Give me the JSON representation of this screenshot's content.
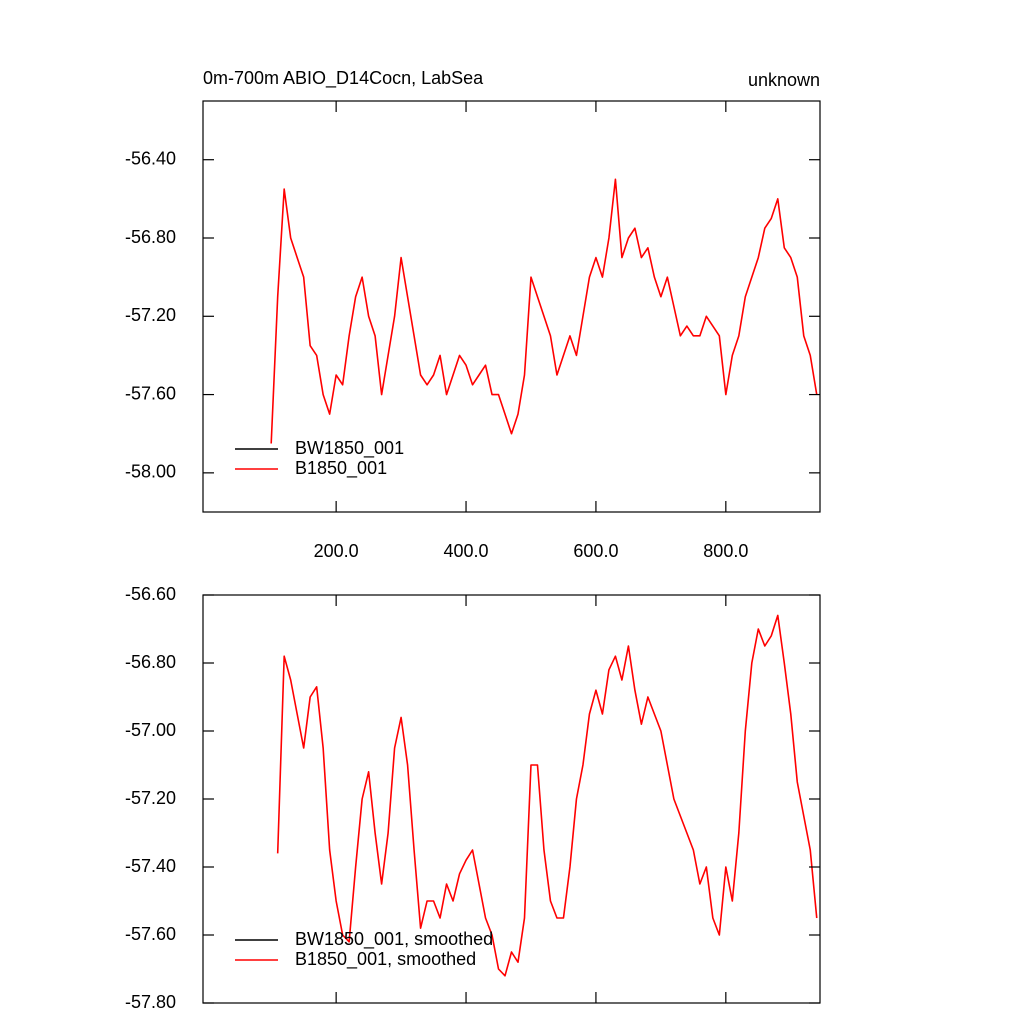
{
  "chart_data": [
    {
      "type": "line",
      "title": "0m-700m ABIO_D14Cocn, LabSea",
      "right_title": "unknown",
      "x": [
        100,
        110,
        120,
        130,
        140,
        150,
        160,
        170,
        180,
        190,
        200,
        210,
        220,
        230,
        240,
        250,
        260,
        270,
        280,
        290,
        300,
        310,
        320,
        330,
        340,
        350,
        360,
        370,
        380,
        390,
        400,
        410,
        420,
        430,
        440,
        450,
        460,
        470,
        480,
        490,
        500,
        510,
        520,
        530,
        540,
        550,
        560,
        570,
        580,
        590,
        600,
        610,
        620,
        630,
        640,
        650,
        660,
        670,
        680,
        690,
        700,
        710,
        720,
        730,
        740,
        750,
        760,
        770,
        780,
        790,
        800,
        810,
        820,
        830,
        840,
        850,
        860,
        870,
        880,
        890,
        900,
        910,
        920,
        930,
        940
      ],
      "series": [
        {
          "name": "BW1850_001",
          "color": "#000000",
          "values": [
            null,
            null,
            null,
            null,
            null,
            null,
            null,
            null,
            null,
            null,
            null,
            null,
            null,
            null,
            null,
            null,
            null,
            null,
            null,
            null,
            null,
            null,
            null,
            null,
            null,
            null,
            null,
            null,
            null,
            null,
            null,
            null,
            null,
            null,
            null,
            null,
            null,
            null,
            null,
            null,
            null,
            null,
            null,
            null,
            null,
            null,
            null,
            null,
            null,
            null,
            null,
            null,
            null,
            null,
            null,
            null,
            null,
            null,
            null,
            null,
            null,
            null,
            null,
            null,
            null,
            null,
            null,
            null,
            null,
            null,
            null,
            null,
            null,
            null,
            null,
            null,
            null,
            null,
            null,
            null,
            null,
            null,
            null,
            null,
            null
          ]
        },
        {
          "name": "B1850_001",
          "color": "#ff0000",
          "values": [
            -57.85,
            -57.1,
            -56.55,
            -56.8,
            -56.9,
            -57.0,
            -57.35,
            -57.4,
            -57.6,
            -57.7,
            -57.5,
            -57.55,
            -57.3,
            -57.1,
            -57.0,
            -57.2,
            -57.3,
            -57.6,
            -57.4,
            -57.2,
            -56.9,
            -57.1,
            -57.3,
            -57.5,
            -57.55,
            -57.5,
            -57.4,
            -57.6,
            -57.5,
            -57.4,
            -57.45,
            -57.55,
            -57.5,
            -57.45,
            -57.6,
            -57.6,
            -57.7,
            -57.8,
            -57.7,
            -57.5,
            -57.0,
            -57.1,
            -57.2,
            -57.3,
            -57.5,
            -57.4,
            -57.3,
            -57.4,
            -57.2,
            -57.0,
            -56.9,
            -57.0,
            -56.8,
            -56.5,
            -56.9,
            -56.8,
            -56.75,
            -56.9,
            -56.85,
            -57.0,
            -57.1,
            -57.0,
            -57.15,
            -57.3,
            -57.25,
            -57.3,
            -57.3,
            -57.2,
            -57.25,
            -57.3,
            -57.6,
            -57.4,
            -57.3,
            -57.1,
            -57.0,
            -56.9,
            -56.75,
            -56.7,
            -56.6,
            -56.85,
            -56.9,
            -57.0,
            -57.3,
            -57.4,
            -57.6
          ]
        }
      ],
      "xlim": [
        -5,
        945
      ],
      "xticks": [
        {
          "value": 200,
          "label": "200.0"
        },
        {
          "value": 400,
          "label": "400.0"
        },
        {
          "value": 600,
          "label": "600.0"
        },
        {
          "value": 800,
          "label": "800.0"
        }
      ],
      "xtick_labels_shown": true,
      "ylim": [
        -58.2,
        -56.1
      ],
      "yticks": [
        {
          "value": -58,
          "label": "-58.00"
        },
        {
          "value": -57.6,
          "label": "-57.60"
        },
        {
          "value": -57.2,
          "label": "-57.20"
        },
        {
          "value": -56.8,
          "label": "-56.80"
        },
        {
          "value": -56.4,
          "label": "-56.40"
        }
      ],
      "legend": "lower left"
    },
    {
      "type": "line",
      "x": [
        110,
        120,
        130,
        140,
        150,
        160,
        170,
        180,
        190,
        200,
        210,
        220,
        230,
        240,
        250,
        260,
        270,
        280,
        290,
        300,
        310,
        320,
        330,
        340,
        350,
        360,
        370,
        380,
        390,
        400,
        410,
        420,
        430,
        440,
        450,
        460,
        470,
        480,
        490,
        500,
        510,
        520,
        530,
        540,
        550,
        560,
        570,
        580,
        590,
        600,
        610,
        620,
        630,
        640,
        650,
        660,
        670,
        680,
        690,
        700,
        710,
        720,
        730,
        740,
        750,
        760,
        770,
        780,
        790,
        800,
        810,
        820,
        830,
        840,
        850,
        860,
        870,
        880,
        890,
        900,
        910,
        920,
        930,
        940
      ],
      "series": [
        {
          "name": "BW1850_001, smoothed",
          "color": "#000000",
          "values": [
            null,
            null,
            null,
            null,
            null,
            null,
            null,
            null,
            null,
            null,
            null,
            null,
            null,
            null,
            null,
            null,
            null,
            null,
            null,
            null,
            null,
            null,
            null,
            null,
            null,
            null,
            null,
            null,
            null,
            null,
            null,
            null,
            null,
            null,
            null,
            null,
            null,
            null,
            null,
            null,
            null,
            null,
            null,
            null,
            null,
            null,
            null,
            null,
            null,
            null,
            null,
            null,
            null,
            null,
            null,
            null,
            null,
            null,
            null,
            null,
            null,
            null,
            null,
            null,
            null,
            null,
            null,
            null,
            null,
            null,
            null,
            null,
            null,
            null,
            null,
            null,
            null,
            null,
            null,
            null,
            null,
            null,
            null,
            null
          ]
        },
        {
          "name": "B1850_001, smoothed",
          "color": "#ff0000",
          "values": [
            -57.36,
            -56.78,
            -56.85,
            -56.95,
            -57.05,
            -56.9,
            -56.87,
            -57.05,
            -57.35,
            -57.5,
            -57.6,
            -57.62,
            -57.4,
            -57.2,
            -57.12,
            -57.3,
            -57.45,
            -57.3,
            -57.05,
            -56.96,
            -57.1,
            -57.35,
            -57.58,
            -57.5,
            -57.5,
            -57.55,
            -57.45,
            -57.5,
            -57.42,
            -57.38,
            -57.35,
            -57.45,
            -57.55,
            -57.6,
            -57.7,
            -57.72,
            -57.65,
            -57.68,
            -57.55,
            -57.1,
            -57.1,
            -57.35,
            -57.5,
            -57.55,
            -57.55,
            -57.4,
            -57.2,
            -57.1,
            -56.95,
            -56.88,
            -56.95,
            -56.82,
            -56.78,
            -56.85,
            -56.75,
            -56.88,
            -56.98,
            -56.9,
            -56.95,
            -57.0,
            -57.1,
            -57.2,
            -57.25,
            -57.3,
            -57.35,
            -57.45,
            -57.4,
            -57.55,
            -57.6,
            -57.4,
            -57.5,
            -57.3,
            -57.0,
            -56.8,
            -56.7,
            -56.75,
            -56.72,
            -56.66,
            -56.8,
            -56.95,
            -57.15,
            -57.25,
            -57.35,
            -57.55
          ]
        }
      ],
      "xlim": [
        -5,
        945
      ],
      "xticks": [
        200,
        400,
        600,
        800
      ],
      "xtick_labels_shown": false,
      "ylim": [
        -57.8,
        -56.6
      ],
      "yticks": [
        {
          "value": -57.8,
          "label": "-57.80"
        },
        {
          "value": -57.6,
          "label": "-57.60"
        },
        {
          "value": -57.4,
          "label": "-57.40"
        },
        {
          "value": -57.2,
          "label": "-57.20"
        },
        {
          "value": -57,
          "label": "-57.00"
        },
        {
          "value": -56.8,
          "label": "-56.80"
        },
        {
          "value": -56.6,
          "label": "-56.60"
        }
      ],
      "legend": "lower left"
    }
  ]
}
